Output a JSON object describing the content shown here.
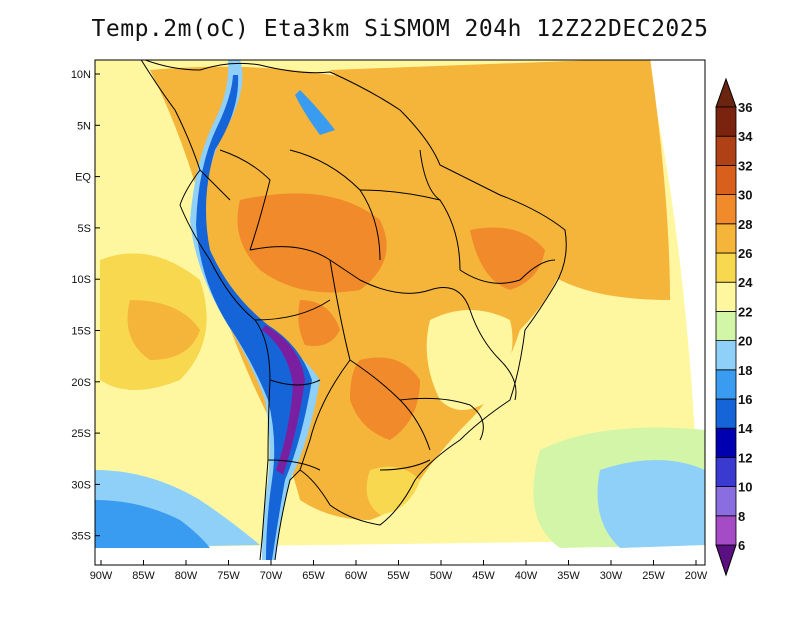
{
  "title": "Temp.2m(oC) Eta3km SiSMOM 204h 12Z22DEC2025",
  "map": {
    "lat_labels": [
      "10N",
      "5N",
      "EQ",
      "5S",
      "10S",
      "15S",
      "20S",
      "25S",
      "30S",
      "35S"
    ],
    "lon_labels": [
      "90W",
      "85W",
      "80W",
      "75W",
      "70W",
      "65W",
      "60W",
      "55W",
      "50W",
      "45W",
      "40W",
      "35W",
      "30W",
      "25W",
      "20W"
    ]
  },
  "colorbar": {
    "levels": [
      "6",
      "8",
      "10",
      "12",
      "14",
      "16",
      "18",
      "20",
      "22",
      "24",
      "26",
      "28",
      "30",
      "32",
      "34",
      "36"
    ],
    "colors": [
      "#7a1fa0",
      "#a54bc6",
      "#8a6de0",
      "#3a3ad0",
      "#0000b0",
      "#1565d8",
      "#3a9cf0",
      "#8fd0f8",
      "#d2f5a8",
      "#fff7a0",
      "#f8d84e",
      "#f5b53a",
      "#f08a2a",
      "#d8601c",
      "#b04016",
      "#7a2410"
    ],
    "under_color": "#5a1080",
    "over_color": "#6a2410"
  }
}
